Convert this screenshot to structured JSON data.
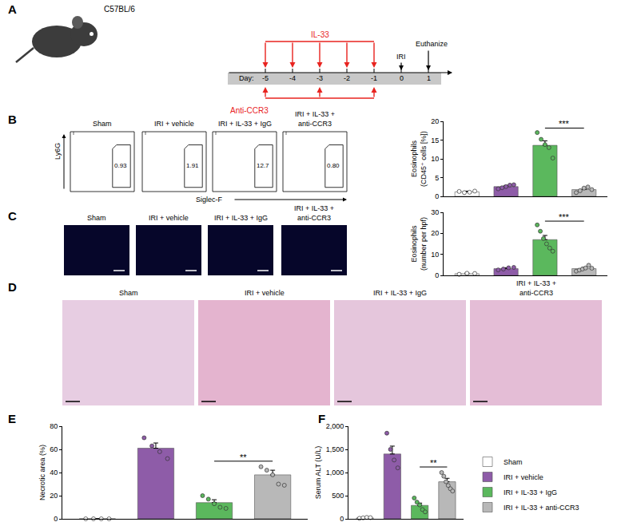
{
  "schematic": {
    "panel": "A",
    "strain": "C57BL/6",
    "day_label": "Day:",
    "days": [
      -5,
      -4,
      -3,
      -2,
      -1,
      0,
      1
    ],
    "il33": {
      "label": "IL-33",
      "days": [
        -5,
        -4,
        -3,
        -2,
        -1
      ],
      "color": "#e8231f"
    },
    "anti_ccr3": {
      "label": "Anti-CCR3",
      "days": [
        -5,
        -3,
        -1
      ],
      "color": "#e8231f"
    },
    "iri": {
      "label": "IRI",
      "day": 0
    },
    "euthanize": {
      "label": "Euthanize",
      "day": 1
    }
  },
  "flow": {
    "panel": "B",
    "x_label": "Siglec-F",
    "y_label": "Ly6G",
    "plots": [
      {
        "title": [
          "Sham"
        ],
        "gate": "0.93"
      },
      {
        "title": [
          "IRI + vehicle"
        ],
        "gate": "1.91"
      },
      {
        "title": [
          "IRI + IL-33 + IgG"
        ],
        "gate": "12.7"
      },
      {
        "title": [
          "IRI + IL-33 +",
          "anti-CCR3"
        ],
        "gate": "0.80"
      }
    ]
  },
  "microscopy": {
    "panel": "C",
    "titles": [
      [
        "Sham"
      ],
      [
        "IRI + vehicle"
      ],
      [
        "IRI + IL-33 + IgG"
      ],
      [
        "IRI + IL-33 +",
        "anti-CCR3"
      ]
    ]
  },
  "histology": {
    "panel": "D",
    "titles": [
      [
        "Sham"
      ],
      [
        "IRI + vehicle"
      ],
      [
        "IRI + IL-33 + IgG"
      ],
      [
        "IRI + IL-33 +",
        "anti-CCR3"
      ]
    ]
  },
  "chart_data": [
    {
      "type": "bar",
      "y_label": [
        "Eosinophils",
        "(CD45⁺ cells [%])"
      ],
      "categories": [
        "Sham",
        "IRI + vehicle",
        "IRI + IL-33 + IgG",
        "IRI + IL-33 + anti-CCR3"
      ],
      "values": [
        1.2,
        2.6,
        13.6,
        1.8
      ],
      "errors": [
        0.2,
        0.3,
        1.2,
        0.3
      ],
      "points": [
        [
          1.3,
          1.0,
          1.1,
          1.4
        ],
        [
          2.0,
          2.3,
          2.6,
          3.0,
          3.1
        ],
        [
          17.0,
          15.2,
          13.8,
          13.0,
          10.2
        ],
        [
          1.0,
          1.5,
          2.2,
          2.5,
          1.8
        ]
      ],
      "colors": [
        "#ffffff",
        "#8e5ca8",
        "#5bb85d",
        "#b8b8b8"
      ],
      "ylim": [
        0,
        20
      ],
      "yticks": [
        0,
        5,
        10,
        15,
        20
      ],
      "grid": false,
      "tick_labels": "y",
      "significance": {
        "between": [
          "IRI + IL-33 + IgG",
          "IRI + IL-33 + anti-CCR3"
        ],
        "label": "***"
      }
    },
    {
      "type": "bar",
      "y_label": [
        "Eosinophils",
        "(number per hpf)"
      ],
      "categories": [
        "Sham",
        "IRI + vehicle",
        "IRI + IL-33 + IgG",
        "IRI + IL-33 + anti-CCR3"
      ],
      "values": [
        0.8,
        3.2,
        17.0,
        3.2
      ],
      "errors": [
        0.3,
        0.4,
        2.0,
        0.6
      ],
      "points": [
        [
          0.5,
          1.0,
          0.9
        ],
        [
          2.6,
          3.0,
          3.6,
          3.8
        ],
        [
          24.0,
          21.0,
          17.5,
          15.0,
          13.0,
          11.5
        ],
        [
          2.0,
          2.5,
          3.0,
          3.5,
          4.8,
          3.4
        ]
      ],
      "colors": [
        "#ffffff",
        "#8e5ca8",
        "#5bb85d",
        "#b8b8b8"
      ],
      "ylim": [
        0,
        30
      ],
      "yticks": [
        0,
        10,
        20,
        30
      ],
      "grid": false,
      "tick_labels": "y",
      "significance": {
        "between": [
          "IRI + IL-33 + IgG",
          "IRI + IL-33 + anti-CCR3"
        ],
        "label": "***"
      }
    },
    {
      "type": "bar",
      "panel": "E",
      "y_label": [
        "Necrotic area (%)"
      ],
      "categories": [
        "Sham",
        "IRI + vehicle",
        "IRI + IL-33 + IgG",
        "IRI + IL-33 + anti-CCR3"
      ],
      "values": [
        0,
        61,
        14,
        38
      ],
      "errors": [
        0,
        4.5,
        2.5,
        4
      ],
      "points": [
        [
          0,
          0,
          0,
          0
        ],
        [
          70,
          63,
          58,
          52
        ],
        [
          20,
          17,
          13,
          10,
          9
        ],
        [
          45,
          42,
          38,
          30,
          29
        ]
      ],
      "colors": [
        "#ffffff",
        "#8e5ca8",
        "#5bb85d",
        "#b8b8b8"
      ],
      "ylim": [
        0,
        80
      ],
      "yticks": [
        0,
        20,
        40,
        60,
        80
      ],
      "grid": false,
      "tick_labels": "y",
      "significance": {
        "between": [
          "IRI + IL-33 + IgG",
          "IRI + IL-33 + anti-CCR3"
        ],
        "label": "**"
      }
    },
    {
      "type": "bar",
      "panel": "F",
      "y_label": [
        "Serum ALT (U/L)"
      ],
      "categories": [
        "Sham",
        "IRI + vehicle",
        "IRI + IL-33 + IgG",
        "IRI + IL-33 + anti-CCR3"
      ],
      "values": [
        20,
        1400,
        290,
        800
      ],
      "errors": [
        5,
        170,
        50,
        75
      ],
      "points": [
        [
          10,
          20,
          30,
          25
        ],
        [
          1850,
          1500,
          1270,
          1100
        ],
        [
          450,
          360,
          300,
          200,
          150
        ],
        [
          1000,
          920,
          800,
          720,
          650,
          600
        ]
      ],
      "colors": [
        "#ffffff",
        "#8e5ca8",
        "#5bb85d",
        "#b8b8b8"
      ],
      "ylim": [
        0,
        2000
      ],
      "yticks": [
        0,
        500,
        {
          "value": 1000,
          "label": "1,000"
        },
        {
          "value": 1500,
          "label": "1,500"
        },
        {
          "value": 2000,
          "label": "2,000"
        }
      ],
      "grid": false,
      "tick_labels": "y",
      "legend": "right",
      "significance": {
        "between": [
          "IRI + IL-33 + IgG",
          "IRI + IL-33 + anti-CCR3"
        ],
        "label": "**"
      }
    }
  ]
}
